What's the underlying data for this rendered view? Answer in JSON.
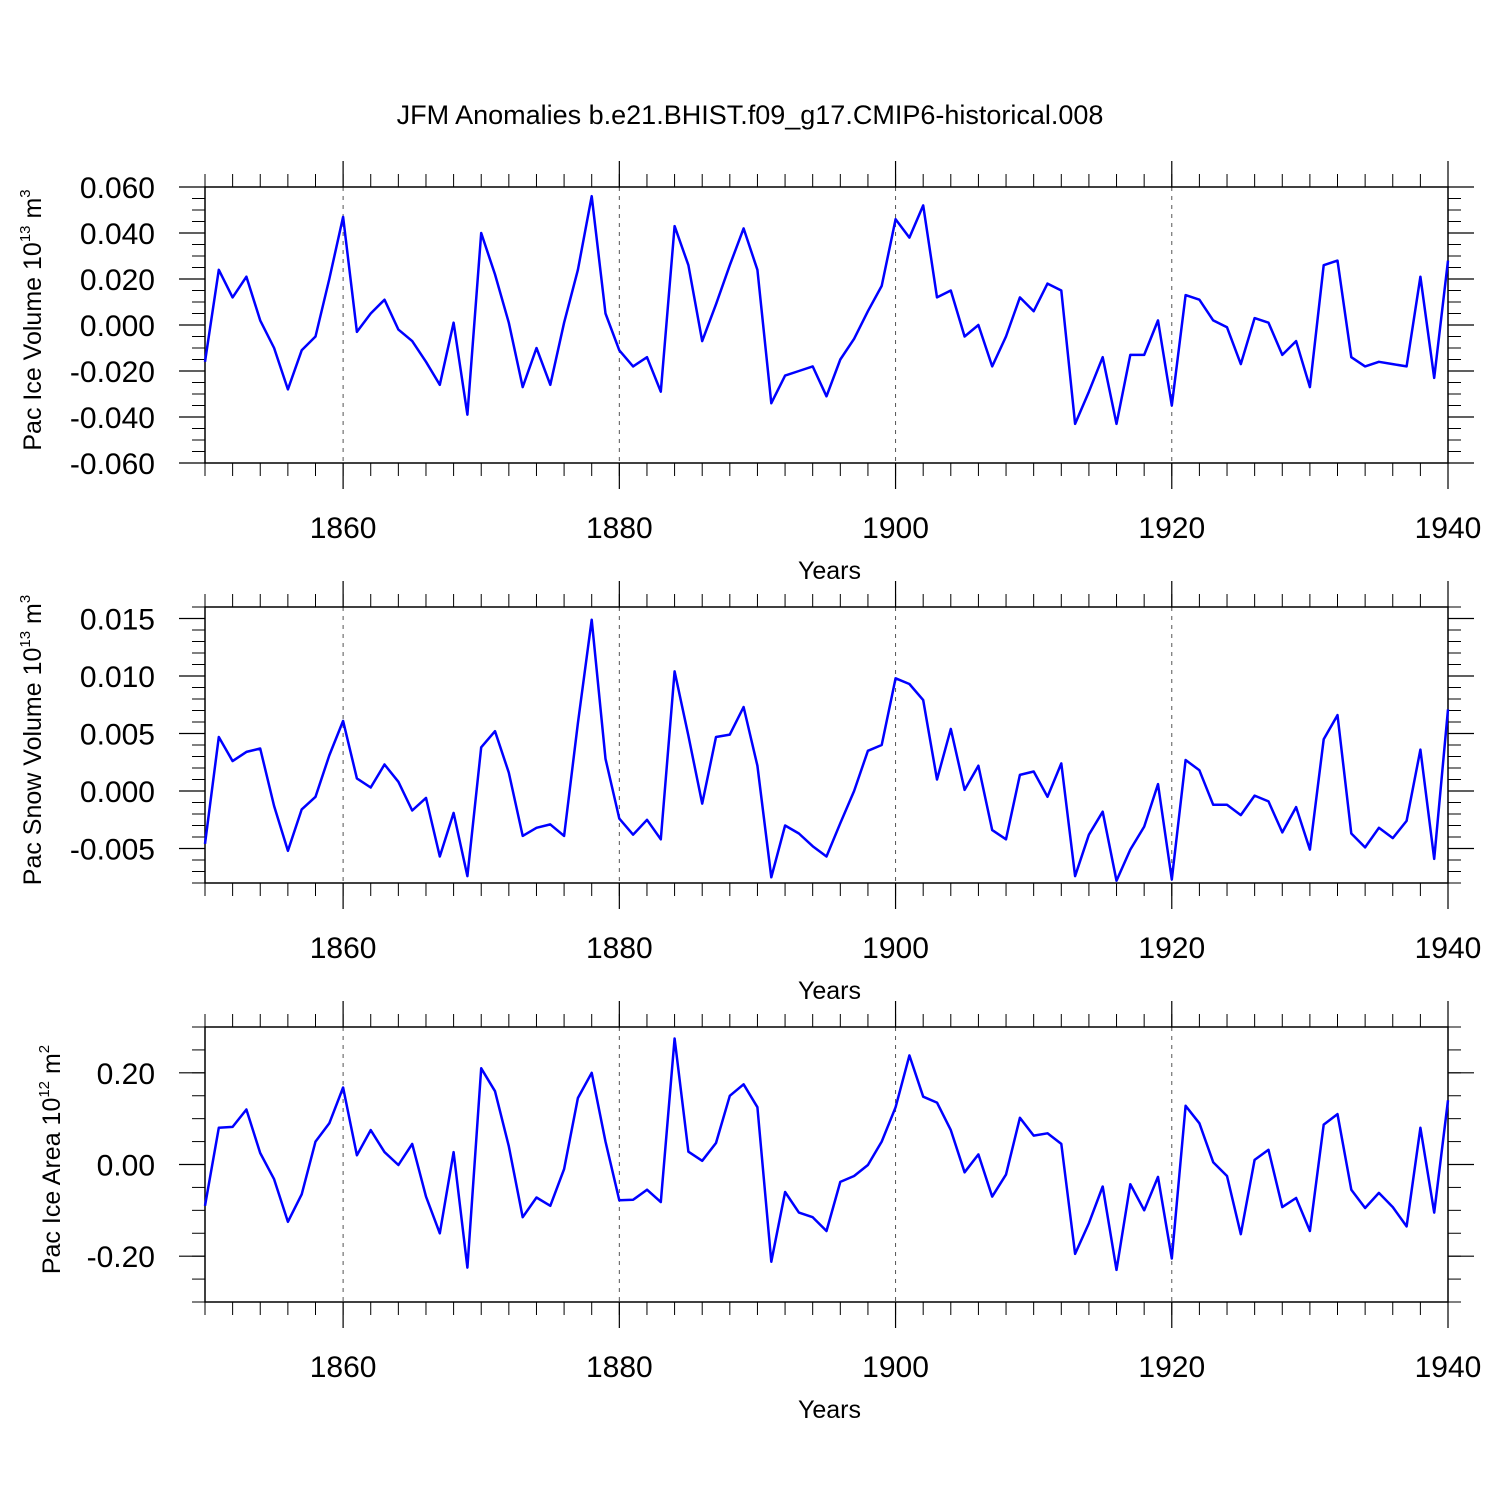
{
  "title": "JFM Anomalies b.e21.BHIST.f09_g17.CMIP6-historical.008",
  "colors": {
    "series": "#0000ff",
    "axes": "#000000",
    "grid": "#555555",
    "background": "#ffffff"
  },
  "chart_data": [
    {
      "type": "line",
      "name": "Pac Ice Volume",
      "ylabel_main": "Pac Ice Volume 10",
      "ylabel_exp": "13",
      "ylabel_unit": " m",
      "ylabel_unit_exp": "3",
      "xlabel": "Years",
      "xlim": [
        1850,
        1940
      ],
      "ylim": [
        -0.06,
        0.06
      ],
      "x_ticks": [
        1860,
        1880,
        1900,
        1920,
        1940
      ],
      "x_tick_labels": [
        "1860",
        "1880",
        "1900",
        "1920",
        "1940"
      ],
      "y_ticks": [
        -0.06,
        -0.04,
        -0.02,
        0.0,
        0.02,
        0.04,
        0.06
      ],
      "y_tick_labels": [
        "-0.060",
        "-0.040",
        "-0.020",
        "0.000",
        "0.020",
        "0.040",
        "0.060"
      ],
      "y_minor_step": 0.005,
      "grid_x": [
        1860,
        1880,
        1900,
        1920
      ],
      "series": [
        {
          "name": "Pac Ice Volume",
          "x_start": 1850,
          "x_step": 1,
          "values": [
            -0.016,
            0.024,
            0.012,
            0.021,
            0.002,
            -0.01,
            -0.028,
            -0.011,
            -0.005,
            0.02,
            0.047,
            -0.003,
            0.005,
            0.011,
            -0.002,
            -0.007,
            -0.016,
            -0.026,
            0.001,
            -0.039,
            0.04,
            0.022,
            0.001,
            -0.027,
            -0.01,
            -0.026,
            0.001,
            0.024,
            0.056,
            0.005,
            -0.011,
            -0.018,
            -0.014,
            -0.029,
            0.043,
            0.026,
            -0.007,
            0.009,
            0.026,
            0.042,
            0.024,
            -0.034,
            -0.022,
            -0.02,
            -0.018,
            -0.031,
            -0.015,
            -0.006,
            0.006,
            0.017,
            0.046,
            0.038,
            0.052,
            0.012,
            0.015,
            -0.005,
            0.0,
            -0.018,
            -0.005,
            0.012,
            0.006,
            0.018,
            0.015,
            -0.043,
            -0.029,
            -0.014,
            -0.043,
            -0.013,
            -0.013,
            0.002,
            -0.035,
            0.013,
            0.011,
            0.002,
            -0.001,
            -0.017,
            0.003,
            0.001,
            -0.013,
            -0.007,
            -0.027,
            0.026,
            0.028,
            -0.014,
            -0.018,
            -0.016,
            -0.017,
            -0.018,
            0.021,
            -0.023,
            0.028
          ]
        }
      ]
    },
    {
      "type": "line",
      "name": "Pac Snow Volume",
      "ylabel_main": "Pac Snow Volume 10",
      "ylabel_exp": "13",
      "ylabel_unit": " m",
      "ylabel_unit_exp": "3",
      "xlabel": "Years",
      "xlim": [
        1850,
        1940
      ],
      "ylim": [
        -0.008,
        0.016
      ],
      "x_ticks": [
        1860,
        1880,
        1900,
        1920,
        1940
      ],
      "x_tick_labels": [
        "1860",
        "1880",
        "1900",
        "1920",
        "1940"
      ],
      "y_ticks": [
        -0.005,
        0.0,
        0.005,
        0.01,
        0.015
      ],
      "y_tick_labels": [
        "-0.005",
        "0.000",
        "0.005",
        "0.010",
        "0.015"
      ],
      "y_minor_step": 0.001,
      "grid_x": [
        1860,
        1880,
        1900,
        1920
      ],
      "series": [
        {
          "name": "Pac Snow Volume",
          "x_start": 1850,
          "x_step": 1,
          "values": [
            -0.0046,
            0.0047,
            0.0026,
            0.0034,
            0.0037,
            -0.0013,
            -0.0052,
            -0.0016,
            -0.0005,
            0.0031,
            0.0061,
            0.0011,
            0.0003,
            0.0023,
            0.0008,
            -0.0017,
            -0.0006,
            -0.0057,
            -0.0019,
            -0.0074,
            0.0038,
            0.0052,
            0.0016,
            -0.0039,
            -0.0032,
            -0.0029,
            -0.0039,
            0.0059,
            0.0149,
            0.0028,
            -0.0024,
            -0.0038,
            -0.0025,
            -0.0042,
            0.0104,
            0.0048,
            -0.0011,
            0.0047,
            0.0049,
            0.0073,
            0.0022,
            -0.0075,
            -0.003,
            -0.0037,
            -0.0048,
            -0.0057,
            -0.0028,
            0.0,
            0.0035,
            0.004,
            0.0098,
            0.0093,
            0.0079,
            0.001,
            0.0054,
            0.0001,
            0.0022,
            -0.0034,
            -0.0042,
            0.0014,
            0.0017,
            -0.0005,
            0.0024,
            -0.0074,
            -0.0038,
            -0.0018,
            -0.0078,
            -0.0051,
            -0.0031,
            0.0006,
            -0.0077,
            0.0027,
            0.0018,
            -0.0012,
            -0.0012,
            -0.0021,
            -0.0004,
            -0.0009,
            -0.0036,
            -0.0014,
            -0.0051,
            0.0045,
            0.0066,
            -0.0037,
            -0.0049,
            -0.0032,
            -0.0041,
            -0.0026,
            0.0036,
            -0.0059,
            0.0071
          ]
        }
      ]
    },
    {
      "type": "line",
      "name": "Pac Ice Area",
      "ylabel_main": "Pac Ice Area 10",
      "ylabel_exp": "12",
      "ylabel_unit": " m",
      "ylabel_unit_exp": "2",
      "xlabel": "Years",
      "xlim": [
        1850,
        1940
      ],
      "ylim": [
        -0.3,
        0.3
      ],
      "x_ticks": [
        1860,
        1880,
        1900,
        1920,
        1940
      ],
      "x_tick_labels": [
        "1860",
        "1880",
        "1900",
        "1920",
        "1940"
      ],
      "y_ticks": [
        -0.2,
        0.0,
        0.2
      ],
      "y_tick_labels": [
        "-0.20",
        "0.00",
        "0.20"
      ],
      "y_minor_step": 0.05,
      "grid_x": [
        1860,
        1880,
        1900,
        1920
      ],
      "series": [
        {
          "name": "Pac Ice Area",
          "x_start": 1850,
          "x_step": 1,
          "values": [
            -0.09,
            0.08,
            0.082,
            0.12,
            0.025,
            -0.032,
            -0.125,
            -0.065,
            0.05,
            0.09,
            0.168,
            0.02,
            0.075,
            0.027,
            -0.001,
            0.045,
            -0.07,
            -0.15,
            0.027,
            -0.225,
            0.21,
            0.16,
            0.04,
            -0.115,
            -0.072,
            -0.09,
            -0.01,
            0.145,
            0.2,
            0.05,
            -0.078,
            -0.077,
            -0.055,
            -0.082,
            0.275,
            0.028,
            0.008,
            0.047,
            0.15,
            0.175,
            0.125,
            -0.212,
            -0.06,
            -0.105,
            -0.115,
            -0.145,
            -0.038,
            -0.025,
            -0.001,
            0.05,
            0.125,
            0.238,
            0.148,
            0.135,
            0.075,
            -0.017,
            0.022,
            -0.07,
            -0.022,
            0.102,
            0.063,
            0.068,
            0.045,
            -0.195,
            -0.128,
            -0.048,
            -0.23,
            -0.043,
            -0.1,
            -0.027,
            -0.205,
            0.128,
            0.09,
            0.005,
            -0.025,
            -0.152,
            0.01,
            0.032,
            -0.093,
            -0.073,
            -0.145,
            0.087,
            0.11,
            -0.055,
            -0.095,
            -0.062,
            -0.093,
            -0.135,
            0.08,
            -0.105,
            0.14
          ]
        }
      ]
    }
  ]
}
